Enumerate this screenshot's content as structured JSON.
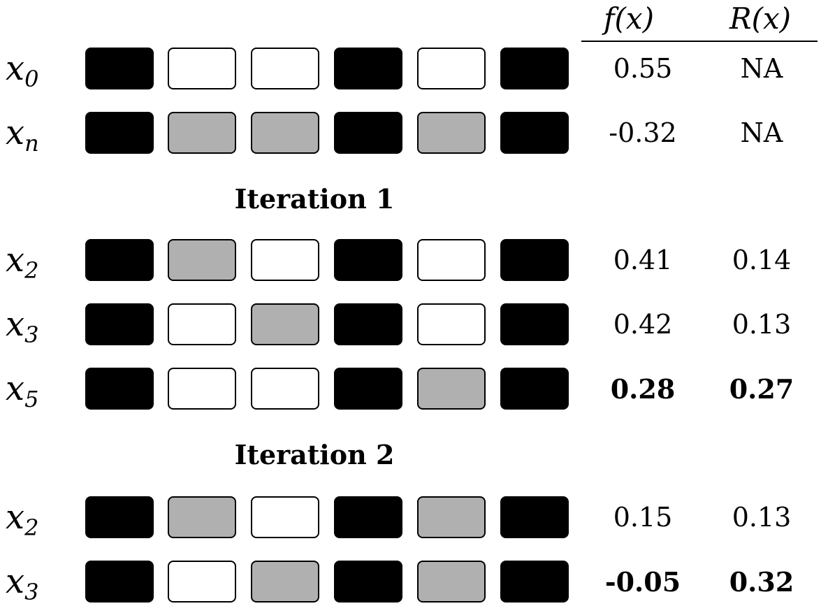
{
  "headers": {
    "f": "f(x)",
    "r": "R(x)"
  },
  "rows": [
    {
      "label_base": "x",
      "label_sub": "0",
      "cells": [
        "black",
        "white",
        "white",
        "black",
        "white",
        "black"
      ],
      "f": "0.55",
      "r": "NA",
      "bold": false
    },
    {
      "label_base": "x",
      "label_sub": "n",
      "cells": [
        "black",
        "grey",
        "grey",
        "black",
        "grey",
        "black"
      ],
      "f": "-0.32",
      "r": "NA",
      "bold": false
    },
    {
      "label_base": "x",
      "label_sub": "2",
      "cells": [
        "black",
        "grey",
        "white",
        "black",
        "white",
        "black"
      ],
      "f": "0.41",
      "r": "0.14",
      "bold": false
    },
    {
      "label_base": "x",
      "label_sub": "3",
      "cells": [
        "black",
        "white",
        "grey",
        "black",
        "white",
        "black"
      ],
      "f": "0.42",
      "r": "0.13",
      "bold": false
    },
    {
      "label_base": "x",
      "label_sub": "5",
      "cells": [
        "black",
        "white",
        "white",
        "black",
        "grey",
        "black"
      ],
      "f": "0.28",
      "r": "0.27",
      "bold": true
    },
    {
      "label_base": "x",
      "label_sub": "2",
      "cells": [
        "black",
        "grey",
        "white",
        "black",
        "grey",
        "black"
      ],
      "f": "0.15",
      "r": "0.13",
      "bold": false
    },
    {
      "label_base": "x",
      "label_sub": "3",
      "cells": [
        "black",
        "white",
        "grey",
        "black",
        "grey",
        "black"
      ],
      "f": "-0.05",
      "r": "0.32",
      "bold": true
    }
  ],
  "iterations": [
    "Iteration 1",
    "Iteration 2"
  ],
  "colors": {
    "black": "#000000",
    "grey": "#b0b0b0",
    "white": "#ffffff"
  }
}
